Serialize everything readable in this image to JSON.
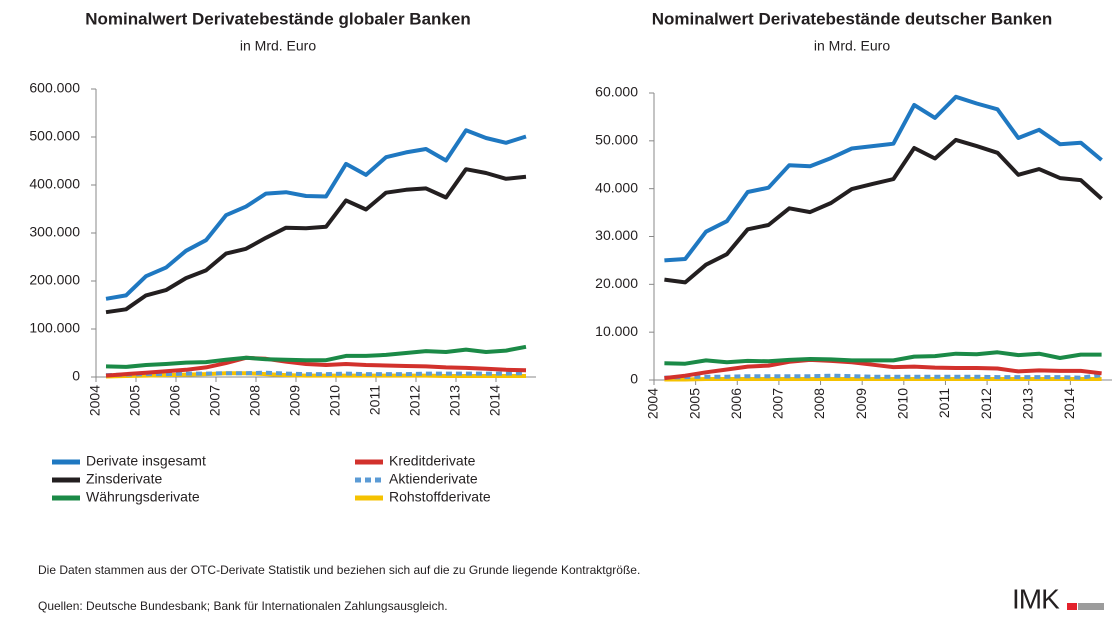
{
  "chart_data": [
    {
      "type": "line",
      "title": "Nominalwert Derivatebestände globaler Banken",
      "subtitle": "in Mrd. Euro",
      "x": [
        2004.25,
        2004.75,
        2005.25,
        2005.75,
        2006.25,
        2006.75,
        2007.25,
        2007.75,
        2008.25,
        2008.75,
        2009.25,
        2009.75,
        2010.25,
        2010.75,
        2011.25,
        2011.75,
        2012.25,
        2012.75,
        2013.25,
        2013.75,
        2014.25,
        2014.75
      ],
      "xlim": [
        2004,
        2015
      ],
      "xticks": [
        2004,
        2005,
        2006,
        2007,
        2008,
        2009,
        2010,
        2011,
        2012,
        2013,
        2014
      ],
      "ylim": [
        0,
        600000
      ],
      "yticks": [
        0,
        {
          "value": 100000,
          "label": "100.000"
        },
        {
          "value": 200000,
          "label": "200.000"
        },
        {
          "value": 300000,
          "label": "300.000"
        },
        {
          "value": 400000,
          "label": "400.000"
        },
        {
          "value": 500000,
          "label": "500.000"
        },
        {
          "value": 600000,
          "label": "600.000"
        }
      ],
      "series": [
        {
          "name": "Derivate insgesamt",
          "color": "#1f78c1",
          "values": [
            163000,
            170000,
            210000,
            228000,
            263000,
            285000,
            337000,
            355000,
            382000,
            385000,
            377000,
            376000,
            444000,
            421000,
            458000,
            468000,
            475000,
            451000,
            514000,
            498000,
            488000,
            501000
          ]
        },
        {
          "name": "Zinsderivate",
          "color": "#231f20",
          "values": [
            135000,
            141000,
            170000,
            181000,
            206000,
            222000,
            257000,
            267000,
            290000,
            311000,
            310000,
            313000,
            368000,
            349000,
            384000,
            390000,
            393000,
            374000,
            433000,
            425000,
            413000,
            417000
          ]
        },
        {
          "name": "Währungsderivate",
          "color": "#1b8a47",
          "values": [
            22000,
            21000,
            25000,
            27000,
            30000,
            31000,
            36000,
            40000,
            37000,
            36000,
            35000,
            35000,
            44000,
            44000,
            46000,
            50000,
            54000,
            52000,
            57000,
            52000,
            55000,
            63000
          ]
        },
        {
          "name": "Kreditderivate",
          "color": "#d2312c",
          "values": [
            3000,
            6000,
            9000,
            12000,
            15000,
            20000,
            29000,
            40000,
            38000,
            32000,
            27000,
            25000,
            27000,
            25000,
            24000,
            23000,
            22000,
            20000,
            19000,
            17000,
            15000,
            14000
          ]
        },
        {
          "name": "Aktienderivate",
          "color": "#5b9bd5",
          "dash": true,
          "values": [
            4000,
            5000,
            6000,
            6000,
            7000,
            7000,
            8000,
            8000,
            9000,
            7000,
            6000,
            6000,
            7000,
            6000,
            6000,
            6000,
            7000,
            7000,
            7000,
            7000,
            7000,
            8000
          ]
        },
        {
          "name": "Rohstoffderivate",
          "color": "#f5c200",
          "values": [
            1000,
            2000,
            3000,
            4000,
            5000,
            6000,
            8000,
            8000,
            6000,
            4000,
            3000,
            3000,
            3000,
            3000,
            3000,
            3000,
            3000,
            2000,
            2000,
            2000,
            2000,
            2000
          ]
        }
      ]
    },
    {
      "type": "line",
      "title": "Nominalwert Derivatebestände deutscher Banken",
      "subtitle": "in Mrd. Euro",
      "x": [
        2004.25,
        2004.75,
        2005.25,
        2005.75,
        2006.25,
        2006.75,
        2007.25,
        2007.75,
        2008.25,
        2008.75,
        2009.25,
        2009.75,
        2010.25,
        2010.75,
        2011.25,
        2011.75,
        2012.25,
        2012.75,
        2013.25,
        2013.75,
        2014.25,
        2014.75
      ],
      "xlim": [
        2004,
        2015
      ],
      "xticks": [
        2004,
        2005,
        2006,
        2007,
        2008,
        2009,
        2010,
        2011,
        2012,
        2013,
        2014
      ],
      "ylim": [
        0,
        60000
      ],
      "yticks": [
        0,
        {
          "value": 10000,
          "label": "10.000"
        },
        {
          "value": 20000,
          "label": "20.000"
        },
        {
          "value": 30000,
          "label": "30.000"
        },
        {
          "value": 40000,
          "label": "40.000"
        },
        {
          "value": 50000,
          "label": "50.000"
        },
        {
          "value": 60000,
          "label": "60.000"
        }
      ],
      "series": [
        {
          "name": "Derivate insgesamt",
          "color": "#1f78c1",
          "values": [
            25000,
            25300,
            31000,
            33200,
            39300,
            40200,
            44900,
            44700,
            46400,
            48400,
            48900,
            49400,
            57500,
            54800,
            59200,
            57800,
            56600,
            50600,
            52300,
            49300,
            49600,
            46000
          ]
        },
        {
          "name": "Zinsderivate",
          "color": "#231f20",
          "values": [
            21000,
            20400,
            24100,
            26300,
            31500,
            32400,
            35900,
            35100,
            37000,
            39900,
            41000,
            42000,
            48500,
            46300,
            50200,
            48900,
            47500,
            42900,
            44100,
            42200,
            41800,
            37900
          ]
        },
        {
          "name": "Währungsderivate",
          "color": "#1b8a47",
          "values": [
            3500,
            3400,
            4100,
            3700,
            4000,
            3900,
            4200,
            4400,
            4300,
            4100,
            4100,
            4100,
            4900,
            5000,
            5500,
            5400,
            5800,
            5200,
            5500,
            4600,
            5300,
            5300
          ]
        },
        {
          "name": "Kreditderivate",
          "color": "#d2312c",
          "values": [
            400,
            900,
            1600,
            2200,
            2800,
            3000,
            3800,
            4200,
            4000,
            3700,
            3200,
            2700,
            2800,
            2600,
            2500,
            2500,
            2400,
            1800,
            2000,
            1900,
            1900,
            1400
          ]
        },
        {
          "name": "Aktienderivate",
          "color": "#5b9bd5",
          "dash": true,
          "values": [
            500,
            600,
            700,
            700,
            800,
            800,
            800,
            800,
            900,
            800,
            700,
            700,
            700,
            700,
            700,
            700,
            600,
            600,
            600,
            600,
            500,
            1000
          ]
        },
        {
          "name": "Rohstoffderivate",
          "color": "#f5c200",
          "values": [
            100,
            100,
            200,
            200,
            200,
            200,
            200,
            200,
            200,
            200,
            200,
            200,
            200,
            200,
            200,
            200,
            200,
            200,
            200,
            200,
            200,
            200
          ]
        }
      ]
    }
  ],
  "footnotes": [
    "Die Daten stammen aus der OTC-Derivate Statistik und beziehen sich auf die zu Grunde liegende Kontraktgröße.",
    "Quellen: Deutsche Bundesbank; Bank für Internationalen Zahlungsausgleich."
  ],
  "logo": "IMK"
}
